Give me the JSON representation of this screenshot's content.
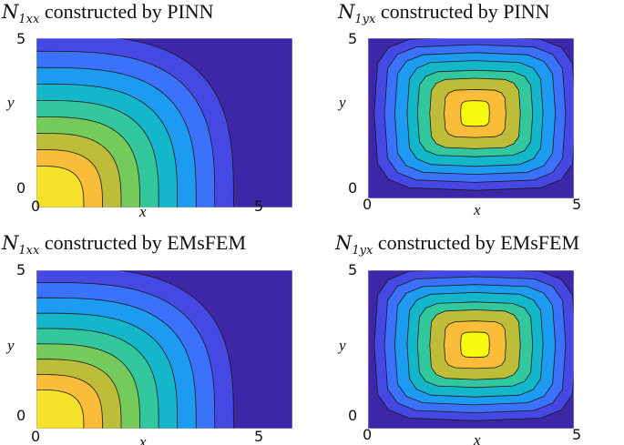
{
  "chart_data": [
    {
      "type": "contour",
      "title_symbol": "N",
      "title_sub": "1xx",
      "title_text": "constructed by PINN",
      "xlabel": "x",
      "ylabel": "y",
      "xticks": [
        "0",
        "5"
      ],
      "yticks": [
        "0",
        "5"
      ],
      "xlim": [
        0,
        5
      ],
      "ylim": [
        0,
        5
      ],
      "colormap": [
        "#3e26a8",
        "#4548e2",
        "#3a72fc",
        "#1d9bf0",
        "#14b7c9",
        "#33c79d",
        "#74ca5b",
        "#bebd3a",
        "#f9bd3a",
        "#f5e22a",
        "#f9fb0e"
      ],
      "field": "corner"
    },
    {
      "type": "contour",
      "title_symbol": "N",
      "title_sub": "1yx",
      "title_text": "constructed by PINN",
      "xlabel": "x",
      "ylabel": "y",
      "xticks": [
        "0",
        "5"
      ],
      "yticks": [
        "0",
        "5"
      ],
      "xlim": [
        0,
        5
      ],
      "ylim": [
        0,
        5
      ],
      "colormap": [
        "#3e26a8",
        "#4548e2",
        "#3a72fc",
        "#1d9bf0",
        "#14b7c9",
        "#33c79d",
        "#74ca5b",
        "#bebd3a",
        "#f9bd3a",
        "#f5e22a",
        "#f9fb0e"
      ],
      "field": "center"
    },
    {
      "type": "contour",
      "title_symbol": "N",
      "title_sub": "1xx",
      "title_text": "constructed by EMsFEM",
      "xlabel": "x",
      "ylabel": "y",
      "xticks": [
        "0",
        "5"
      ],
      "yticks": [
        "0",
        "5"
      ],
      "xlim": [
        0,
        5
      ],
      "ylim": [
        0,
        5
      ],
      "colormap": [
        "#3e26a8",
        "#4548e2",
        "#3a72fc",
        "#1d9bf0",
        "#14b7c9",
        "#33c79d",
        "#74ca5b",
        "#bebd3a",
        "#f9bd3a",
        "#f5e22a",
        "#f9fb0e"
      ],
      "field": "corner"
    },
    {
      "type": "contour",
      "title_symbol": "N",
      "title_sub": "1yx",
      "title_text": "constructed by EMsFEM",
      "xlabel": "x",
      "ylabel": "y",
      "xticks": [
        "0",
        "5"
      ],
      "yticks": [
        "0",
        "5"
      ],
      "xlim": [
        0,
        5
      ],
      "ylim": [
        0,
        5
      ],
      "colormap": [
        "#3e26a8",
        "#4548e2",
        "#3a72fc",
        "#1d9bf0",
        "#14b7c9",
        "#33c79d",
        "#74ca5b",
        "#bebd3a",
        "#f9bd3a",
        "#f5e22a",
        "#f9fb0e"
      ],
      "field": "center"
    }
  ]
}
